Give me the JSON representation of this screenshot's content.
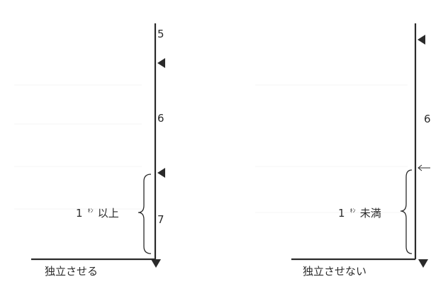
{
  "left_figure": {
    "labels": [
      "5",
      "6",
      "7"
    ],
    "width_note": {
      "prefix": "1",
      "small_unit": "ｷﾝ",
      "suffix": "以上"
    },
    "caption": "独立させる"
  },
  "right_figure": {
    "labels": [
      "6"
    ],
    "width_note": {
      "prefix": "1",
      "small_unit": "ｷﾝ",
      "suffix": "未満"
    },
    "caption": "独立させない"
  }
}
